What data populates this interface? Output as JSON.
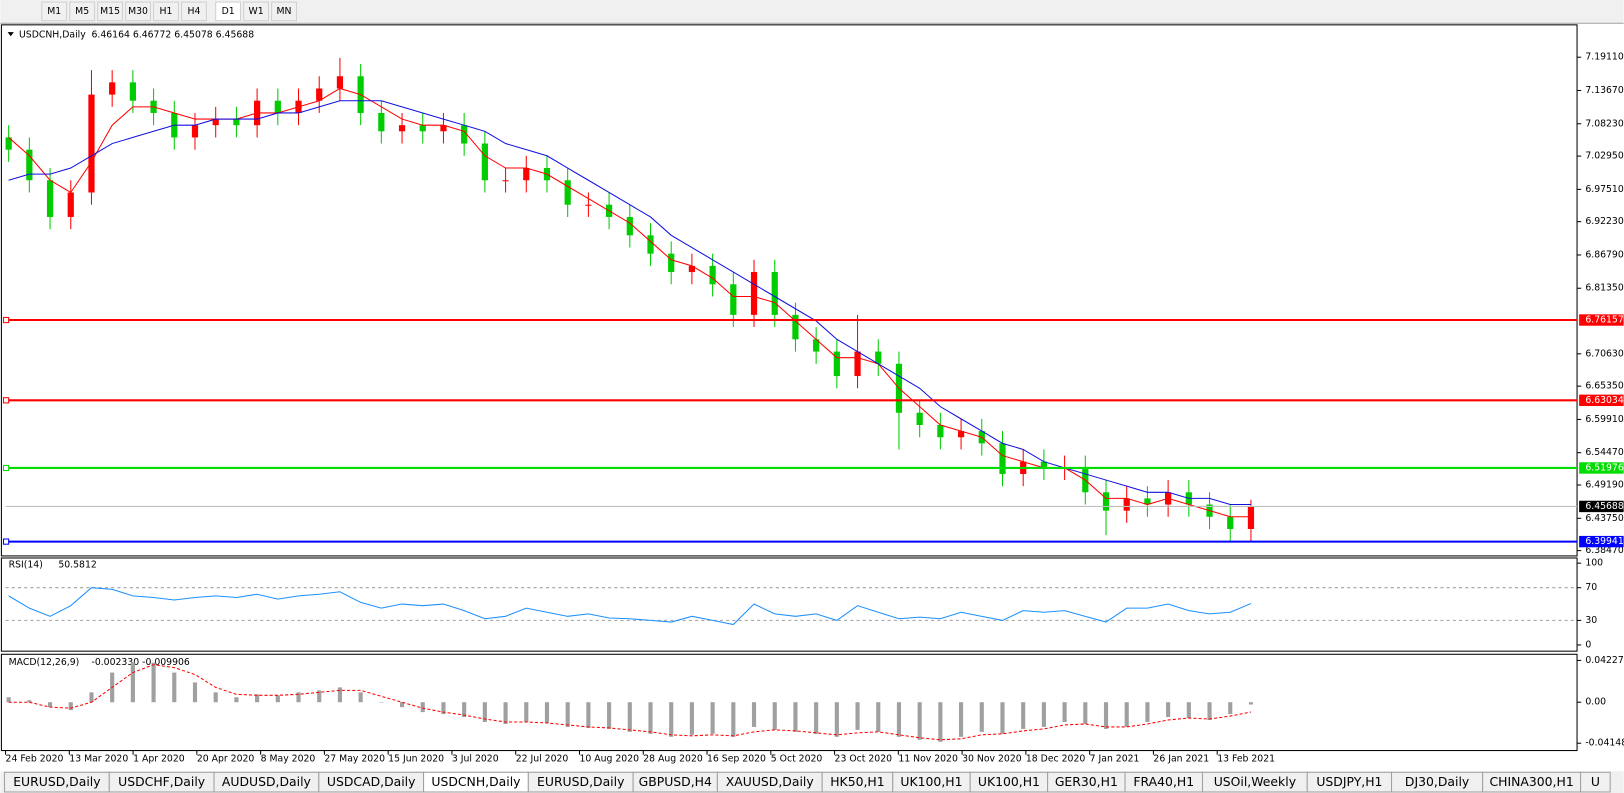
{
  "toolbar": {
    "timeframes": [
      "M1",
      "M5",
      "M15",
      "M30",
      "H1",
      "H4",
      "D1",
      "W1",
      "MN"
    ]
  },
  "tabs": {
    "items": [
      "EURUSD,Daily",
      "USDCHF,Daily",
      "AUDUSD,Daily",
      "USDCAD,Daily",
      "USDCNH,Daily",
      "EURUSD,Daily",
      "GBPUSD,H4",
      "XAUUSD,Daily",
      "HK50,H1",
      "UK100,H1",
      "UK100,H1",
      "GER30,H1",
      "FRA40,H1",
      "USOil,Weekly",
      "USDJPY,H1",
      "DJ30,Daily",
      "CHINA300,H1",
      "U"
    ],
    "active": 4
  },
  "chart_data": [
    {
      "type": "candlestick",
      "title": "USDCNH,Daily",
      "subtitle": "6.46164 6.46772 6.45078 6.45688",
      "date_labels": [
        "24 Feb 2020",
        "13 Mar 2020",
        "1 Apr 2020",
        "20 Apr 2020",
        "8 May 2020",
        "27 May 2020",
        "15 Jun 2020",
        "3 Jul 2020",
        "22 Jul 2020",
        "10 Aug 2020",
        "28 Aug 2020",
        "16 Sep 2020",
        "5 Oct 2020",
        "23 Oct 2020",
        "11 Nov 2020",
        "30 Nov 2020",
        "18 Dec 2020",
        "7 Jan 2021",
        "26 Jan 2021",
        "13 Feb 2021"
      ],
      "open": [
        7.06,
        7.04,
        6.99,
        6.93,
        6.97,
        7.13,
        7.15,
        7.12,
        7.1,
        7.06,
        7.08,
        7.09,
        7.08,
        7.12,
        7.1,
        7.12,
        7.14,
        7.16,
        7.1,
        7.07,
        7.08,
        7.07,
        7.08,
        7.05,
        6.99,
        6.99,
        7.01,
        6.99,
        6.95,
        6.95,
        6.93,
        6.9,
        6.87,
        6.84,
        6.85,
        6.82,
        6.77,
        6.84,
        6.77,
        6.73,
        6.71,
        6.67,
        6.71,
        6.69,
        6.61,
        6.59,
        6.57,
        6.58,
        6.56,
        6.51,
        6.53,
        6.52,
        6.52,
        6.48,
        6.45,
        6.47,
        6.46,
        6.48,
        6.46,
        6.44,
        6.42
      ],
      "high": [
        7.08,
        7.06,
        7.01,
        6.99,
        7.17,
        7.17,
        7.17,
        7.14,
        7.12,
        7.1,
        7.11,
        7.11,
        7.14,
        7.14,
        7.14,
        7.16,
        7.19,
        7.18,
        7.12,
        7.1,
        7.1,
        7.1,
        7.1,
        7.07,
        7.01,
        7.03,
        7.03,
        7.01,
        6.97,
        6.97,
        6.95,
        6.92,
        6.89,
        6.87,
        6.87,
        6.84,
        6.86,
        6.86,
        6.79,
        6.75,
        6.73,
        6.77,
        6.73,
        6.71,
        6.63,
        6.61,
        6.6,
        6.6,
        6.58,
        6.55,
        6.55,
        6.54,
        6.54,
        6.5,
        6.49,
        6.49,
        6.5,
        6.5,
        6.48,
        6.46,
        6.46772
      ],
      "low": [
        7.02,
        6.97,
        6.91,
        6.91,
        6.95,
        7.11,
        7.1,
        7.08,
        7.04,
        7.04,
        7.06,
        7.06,
        7.06,
        7.08,
        7.08,
        7.1,
        7.12,
        7.08,
        7.05,
        7.05,
        7.05,
        7.05,
        7.03,
        6.97,
        6.97,
        6.97,
        6.97,
        6.93,
        6.93,
        6.91,
        6.88,
        6.85,
        6.82,
        6.82,
        6.8,
        6.75,
        6.75,
        6.75,
        6.71,
        6.69,
        6.65,
        6.65,
        6.67,
        6.55,
        6.57,
        6.55,
        6.55,
        6.54,
        6.49,
        6.49,
        6.5,
        6.5,
        6.46,
        6.41,
        6.43,
        6.44,
        6.44,
        6.44,
        6.42,
        6.4,
        6.4
      ],
      "close": [
        7.04,
        6.99,
        6.93,
        6.97,
        7.13,
        7.15,
        7.12,
        7.1,
        7.06,
        7.08,
        7.09,
        7.08,
        7.12,
        7.1,
        7.12,
        7.14,
        7.16,
        7.1,
        7.07,
        7.08,
        7.07,
        7.08,
        7.05,
        6.99,
        6.99,
        7.01,
        6.99,
        6.95,
        6.95,
        6.93,
        6.9,
        6.87,
        6.84,
        6.85,
        6.82,
        6.77,
        6.84,
        6.77,
        6.73,
        6.71,
        6.67,
        6.71,
        6.69,
        6.61,
        6.59,
        6.57,
        6.58,
        6.56,
        6.51,
        6.53,
        6.52,
        6.52,
        6.48,
        6.45,
        6.47,
        6.46,
        6.48,
        6.46,
        6.44,
        6.42,
        6.45688
      ],
      "up_color": "#ff0000",
      "down_color": "#00cc00",
      "series": [
        {
          "color": "#ff0000",
          "values": [
            7.06,
            7.03,
            6.99,
            6.97,
            7.02,
            7.08,
            7.11,
            7.11,
            7.1,
            7.09,
            7.09,
            7.09,
            7.1,
            7.1,
            7.11,
            7.12,
            7.14,
            7.13,
            7.11,
            7.09,
            7.08,
            7.08,
            7.07,
            7.03,
            7.01,
            7.01,
            7.0,
            6.98,
            6.96,
            6.94,
            6.92,
            6.89,
            6.86,
            6.85,
            6.83,
            6.8,
            6.8,
            6.79,
            6.76,
            6.73,
            6.7,
            6.7,
            6.69,
            6.65,
            6.62,
            6.59,
            6.58,
            6.57,
            6.54,
            6.53,
            6.52,
            6.52,
            6.5,
            6.47,
            6.47,
            6.46,
            6.47,
            6.46,
            6.45,
            6.44,
            6.44
          ]
        },
        {
          "color": "#1010e0",
          "values": [
            6.99,
            7.0,
            7.0,
            7.01,
            7.03,
            7.05,
            7.06,
            7.07,
            7.08,
            7.08,
            7.09,
            7.09,
            7.09,
            7.1,
            7.1,
            7.11,
            7.12,
            7.12,
            7.12,
            7.11,
            7.1,
            7.09,
            7.08,
            7.07,
            7.05,
            7.04,
            7.03,
            7.01,
            6.99,
            6.97,
            6.95,
            6.93,
            6.9,
            6.88,
            6.86,
            6.84,
            6.82,
            6.8,
            6.78,
            6.76,
            6.73,
            6.71,
            6.69,
            6.67,
            6.65,
            6.62,
            6.6,
            6.58,
            6.56,
            6.55,
            6.53,
            6.52,
            6.51,
            6.5,
            6.49,
            6.48,
            6.48,
            6.47,
            6.47,
            6.46,
            6.46
          ]
        }
      ],
      "levels": [
        {
          "value": 6.76157,
          "color": "#ff0000"
        },
        {
          "value": 6.63034,
          "color": "#ff0000"
        },
        {
          "value": 6.51976,
          "color": "#00dd00"
        },
        {
          "value": 6.39941,
          "color": "#0000ff"
        }
      ],
      "current_price": 6.45688,
      "ylim": [
        6.376,
        7.244
      ],
      "yticks": [
        {
          "value": 7.1911,
          "label": "7.19110"
        },
        {
          "value": 7.1367,
          "label": "7.13670"
        },
        {
          "value": 7.0823,
          "label": "7.08230"
        },
        {
          "value": 7.0295,
          "label": "7.02950"
        },
        {
          "value": 6.9751,
          "label": "6.97510"
        },
        {
          "value": 6.9223,
          "label": "6.92230"
        },
        {
          "value": 6.8679,
          "label": "6.86790"
        },
        {
          "value": 6.8135,
          "label": "6.81350"
        },
        {
          "value": 6.7063,
          "label": "6.70630"
        },
        {
          "value": 6.6535,
          "label": "6.65350"
        },
        {
          "value": 6.5991,
          "label": "6.59910"
        },
        {
          "value": 6.5447,
          "label": "6.54470"
        },
        {
          "value": 6.4919,
          "label": "6.49190"
        },
        {
          "value": 6.4375,
          "label": "6.43750"
        },
        {
          "value": 6.3847,
          "label": "6.38470"
        }
      ]
    },
    {
      "type": "line",
      "title": "RSI(14)",
      "value": 50.5812,
      "color": "#1e90ff",
      "values": [
        60,
        45,
        35,
        48,
        70,
        68,
        60,
        58,
        55,
        58,
        60,
        58,
        62,
        56,
        60,
        62,
        65,
        52,
        45,
        50,
        48,
        50,
        42,
        32,
        35,
        45,
        40,
        35,
        38,
        33,
        32,
        30,
        28,
        35,
        30,
        25,
        50,
        38,
        35,
        38,
        30,
        48,
        40,
        32,
        34,
        32,
        40,
        35,
        30,
        42,
        40,
        42,
        35,
        28,
        45,
        45,
        50,
        42,
        38,
        40,
        50.5812
      ],
      "ylim": [
        -7.6,
        106.3
      ],
      "yticks": [
        100,
        70,
        30,
        0
      ]
    },
    {
      "type": "macd",
      "title": "MACD(12,26,9)",
      "subtitle": "-0.002330 -0.009906",
      "histogram_color": "#a0a0a0",
      "signal_color": "#ff0000",
      "histogram": [
        0.005,
        0.002,
        -0.005,
        -0.008,
        0.01,
        0.03,
        0.04,
        0.04,
        0.03,
        0.02,
        0.01,
        0.005,
        0.008,
        0.007,
        0.01,
        0.012,
        0.015,
        0.01,
        0.0,
        -0.005,
        -0.01,
        -0.012,
        -0.015,
        -0.02,
        -0.022,
        -0.02,
        -0.021,
        -0.025,
        -0.026,
        -0.027,
        -0.03,
        -0.032,
        -0.035,
        -0.033,
        -0.032,
        -0.035,
        -0.025,
        -0.028,
        -0.03,
        -0.032,
        -0.035,
        -0.028,
        -0.03,
        -0.035,
        -0.038,
        -0.04,
        -0.035,
        -0.03,
        -0.032,
        -0.027,
        -0.025,
        -0.02,
        -0.022,
        -0.027,
        -0.025,
        -0.02,
        -0.015,
        -0.016,
        -0.018,
        -0.012,
        -0.00233
      ],
      "signal": [
        0.0,
        0.0,
        -0.005,
        -0.006,
        0.0,
        0.015,
        0.03,
        0.038,
        0.035,
        0.028,
        0.015,
        0.008,
        0.007,
        0.007,
        0.008,
        0.01,
        0.012,
        0.012,
        0.006,
        0.0,
        -0.006,
        -0.01,
        -0.013,
        -0.017,
        -0.02,
        -0.02,
        -0.021,
        -0.023,
        -0.025,
        -0.026,
        -0.028,
        -0.03,
        -0.033,
        -0.034,
        -0.033,
        -0.034,
        -0.03,
        -0.028,
        -0.029,
        -0.031,
        -0.033,
        -0.031,
        -0.03,
        -0.033,
        -0.036,
        -0.038,
        -0.037,
        -0.033,
        -0.032,
        -0.029,
        -0.027,
        -0.023,
        -0.022,
        -0.025,
        -0.025,
        -0.022,
        -0.018,
        -0.016,
        -0.017,
        -0.014,
        -0.009906
      ],
      "ylim": [
        -0.0489,
        0.0485
      ],
      "yticks": [
        0.042275,
        {
          "value": 0,
          "label": "0.00"
        },
        -0.04148
      ]
    }
  ]
}
